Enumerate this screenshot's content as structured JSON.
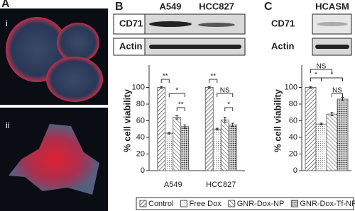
{
  "panels": {
    "a": {
      "label": "A",
      "images": [
        "i",
        "ii"
      ]
    },
    "b": {
      "label": "B",
      "blot": {
        "lanes": [
          "A549",
          "HCC827"
        ],
        "rows": [
          "CD71",
          "Actin"
        ]
      }
    },
    "c": {
      "label": "C",
      "blot": {
        "lanes": [
          "HCASM"
        ],
        "rows": [
          "CD71",
          "Actin"
        ]
      }
    }
  },
  "chart_data": [
    {
      "type": "bar",
      "y_label": "% cell viability",
      "categories": [
        "A549",
        "HCC827"
      ],
      "series": [
        {
          "name": "Control",
          "color": "#555555",
          "pattern": "diagonal",
          "values": [
            100,
            100
          ],
          "errors": [
            1,
            1
          ]
        },
        {
          "name": "Free Dox",
          "color": "#555555",
          "pattern": "dots",
          "values": [
            45,
            50
          ],
          "errors": [
            1,
            1
          ]
        },
        {
          "name": "GNR-Dox-NP",
          "color": "#555555",
          "pattern": "cross",
          "values": [
            64,
            61
          ],
          "errors": [
            2,
            3
          ]
        },
        {
          "name": "GNR-Dox-Tf-NP",
          "color": "#555555",
          "pattern": "densedots",
          "values": [
            53,
            55
          ],
          "errors": [
            2,
            2
          ]
        }
      ],
      "ylim": [
        0,
        120
      ],
      "yticks": [
        0,
        20,
        40,
        60,
        80,
        100
      ],
      "annotations": [
        "**",
        "*",
        "**",
        "**",
        "NS",
        "*"
      ]
    },
    {
      "type": "bar",
      "y_label": "% cell viability",
      "categories": [
        null
      ],
      "series": [
        {
          "color": "#555555",
          "pattern": "diagonal",
          "values": [
            100
          ],
          "errors": [
            1
          ]
        },
        {
          "color": "#555555",
          "pattern": "dots",
          "values": [
            56
          ],
          "errors": [
            1
          ]
        },
        {
          "color": "#555555",
          "pattern": "cross",
          "values": [
            68
          ],
          "errors": [
            2
          ]
        },
        {
          "color": "#555555",
          "pattern": "densedots",
          "values": [
            86
          ],
          "errors": [
            2
          ]
        }
      ],
      "ylim": [
        0,
        120
      ],
      "yticks": [
        0,
        20,
        40,
        60,
        80,
        100
      ],
      "annotations": [
        "NS",
        "*",
        "*",
        "NS"
      ]
    }
  ]
}
